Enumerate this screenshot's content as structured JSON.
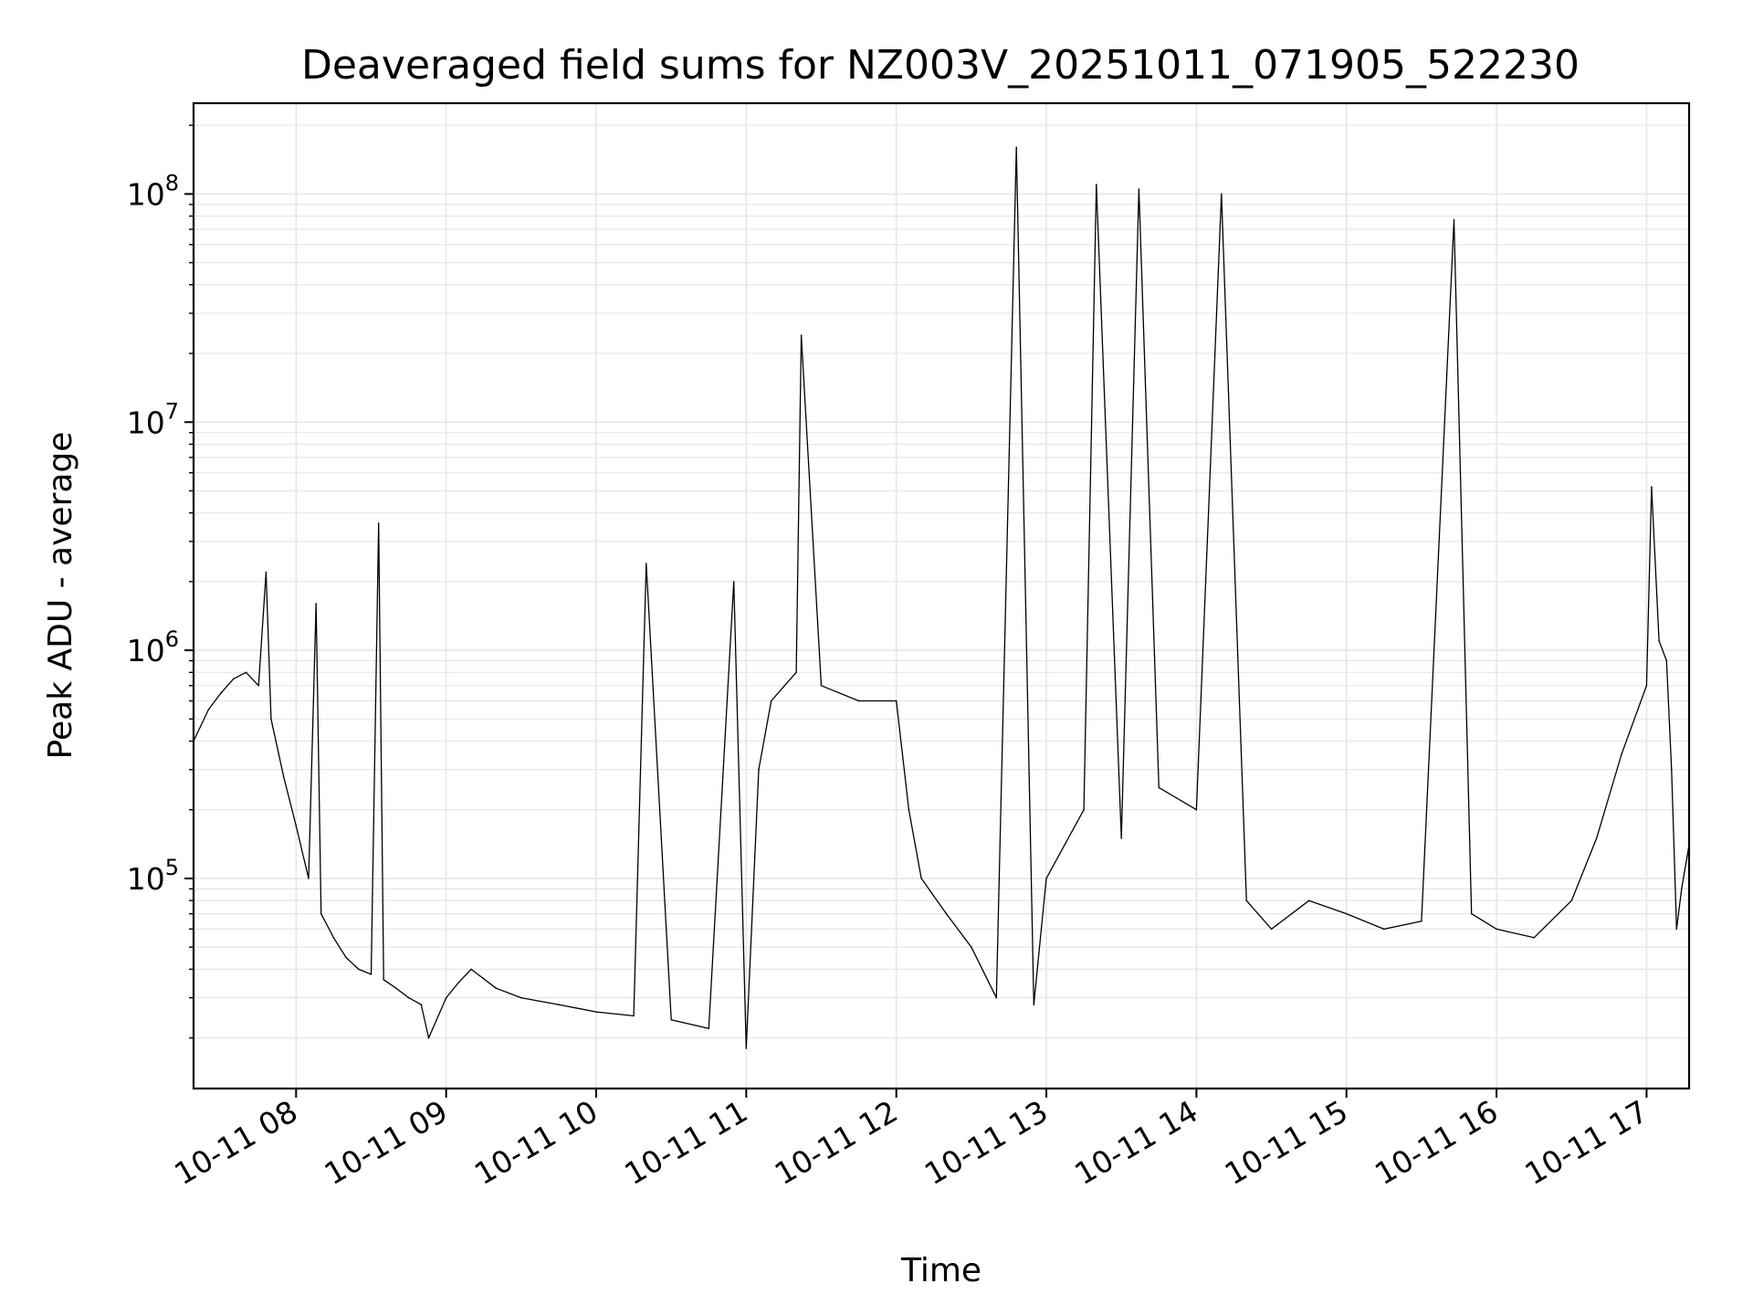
{
  "chart_data": {
    "type": "line",
    "title": "Deaveraged field sums for NZ003V_20251011_071905_522230",
    "xlabel": "Time",
    "ylabel": "Peak ADU - average",
    "y_scale": "log",
    "ylim": [
      12000,
      250000000
    ],
    "xlim": [
      "2025-10-11 07:19",
      "2025-10-11 17:17"
    ],
    "grid": true,
    "line_color": "#000000",
    "x_ticks": [
      {
        "value": "2025-10-11 08:00",
        "label": "10-11 08"
      },
      {
        "value": "2025-10-11 09:00",
        "label": "10-11 09"
      },
      {
        "value": "2025-10-11 10:00",
        "label": "10-11 10"
      },
      {
        "value": "2025-10-11 11:00",
        "label": "10-11 11"
      },
      {
        "value": "2025-10-11 12:00",
        "label": "10-11 12"
      },
      {
        "value": "2025-10-11 13:00",
        "label": "10-11 13"
      },
      {
        "value": "2025-10-11 14:00",
        "label": "10-11 14"
      },
      {
        "value": "2025-10-11 15:00",
        "label": "10-11 15"
      },
      {
        "value": "2025-10-11 16:00",
        "label": "10-11 16"
      },
      {
        "value": "2025-10-11 17:00",
        "label": "10-11 17"
      }
    ],
    "y_ticks": [
      {
        "value": 100000,
        "base": "10",
        "exp": "5"
      },
      {
        "value": 1000000,
        "base": "10",
        "exp": "6"
      },
      {
        "value": 10000000,
        "base": "10",
        "exp": "7"
      },
      {
        "value": 100000000,
        "base": "10",
        "exp": "8"
      }
    ],
    "series": [
      {
        "points": [
          [
            "2025-10-11 07:19",
            400000
          ],
          [
            "2025-10-11 07:25",
            550000
          ],
          [
            "2025-10-11 07:30",
            650000
          ],
          [
            "2025-10-11 07:35",
            750000
          ],
          [
            "2025-10-11 07:40",
            800000
          ],
          [
            "2025-10-11 07:45",
            700000
          ],
          [
            "2025-10-11 07:48",
            2200000
          ],
          [
            "2025-10-11 07:50",
            500000
          ],
          [
            "2025-10-11 07:55",
            280000
          ],
          [
            "2025-10-11 08:00",
            170000
          ],
          [
            "2025-10-11 08:05",
            100000
          ],
          [
            "2025-10-11 08:08",
            1600000
          ],
          [
            "2025-10-11 08:10",
            70000
          ],
          [
            "2025-10-11 08:15",
            55000
          ],
          [
            "2025-10-11 08:20",
            45000
          ],
          [
            "2025-10-11 08:25",
            40000
          ],
          [
            "2025-10-11 08:30",
            38000
          ],
          [
            "2025-10-11 08:33",
            3600000
          ],
          [
            "2025-10-11 08:35",
            36000
          ],
          [
            "2025-10-11 08:40",
            33000
          ],
          [
            "2025-10-11 08:45",
            30000
          ],
          [
            "2025-10-11 08:50",
            28000
          ],
          [
            "2025-10-11 08:53",
            20000
          ],
          [
            "2025-10-11 09:00",
            30000
          ],
          [
            "2025-10-11 09:05",
            35000
          ],
          [
            "2025-10-11 09:10",
            40000
          ],
          [
            "2025-10-11 09:20",
            33000
          ],
          [
            "2025-10-11 09:30",
            30000
          ],
          [
            "2025-10-11 09:45",
            28000
          ],
          [
            "2025-10-11 10:00",
            26000
          ],
          [
            "2025-10-11 10:15",
            25000
          ],
          [
            "2025-10-11 10:20",
            2400000
          ],
          [
            "2025-10-11 10:30",
            24000
          ],
          [
            "2025-10-11 10:45",
            22000
          ],
          [
            "2025-10-11 10:55",
            2000000
          ],
          [
            "2025-10-11 11:00",
            18000
          ],
          [
            "2025-10-11 11:05",
            300000
          ],
          [
            "2025-10-11 11:10",
            600000
          ],
          [
            "2025-10-11 11:20",
            800000
          ],
          [
            "2025-10-11 11:22",
            24000000
          ],
          [
            "2025-10-11 11:30",
            700000
          ],
          [
            "2025-10-11 11:45",
            600000
          ],
          [
            "2025-10-11 12:00",
            600000
          ],
          [
            "2025-10-11 12:05",
            200000
          ],
          [
            "2025-10-11 12:10",
            100000
          ],
          [
            "2025-10-11 12:20",
            70000
          ],
          [
            "2025-10-11 12:30",
            50000
          ],
          [
            "2025-10-11 12:40",
            30000
          ],
          [
            "2025-10-11 12:48",
            160000000
          ],
          [
            "2025-10-11 12:55",
            28000
          ],
          [
            "2025-10-11 13:00",
            100000
          ],
          [
            "2025-10-11 13:15",
            200000
          ],
          [
            "2025-10-11 13:20",
            110000000
          ],
          [
            "2025-10-11 13:30",
            150000
          ],
          [
            "2025-10-11 13:37",
            105000000
          ],
          [
            "2025-10-11 13:45",
            250000
          ],
          [
            "2025-10-11 14:00",
            200000
          ],
          [
            "2025-10-11 14:10",
            100000000
          ],
          [
            "2025-10-11 14:20",
            80000
          ],
          [
            "2025-10-11 14:30",
            60000
          ],
          [
            "2025-10-11 14:45",
            80000
          ],
          [
            "2025-10-11 15:00",
            70000
          ],
          [
            "2025-10-11 15:15",
            60000
          ],
          [
            "2025-10-11 15:30",
            65000
          ],
          [
            "2025-10-11 15:43",
            77000000
          ],
          [
            "2025-10-11 15:50",
            70000
          ],
          [
            "2025-10-11 16:00",
            60000
          ],
          [
            "2025-10-11 16:15",
            55000
          ],
          [
            "2025-10-11 16:30",
            80000
          ],
          [
            "2025-10-11 16:40",
            150000
          ],
          [
            "2025-10-11 16:50",
            350000
          ],
          [
            "2025-10-11 17:00",
            700000
          ],
          [
            "2025-10-11 17:02",
            5200000
          ],
          [
            "2025-10-11 17:05",
            1100000
          ],
          [
            "2025-10-11 17:08",
            900000
          ],
          [
            "2025-10-11 17:10",
            300000
          ],
          [
            "2025-10-11 17:12",
            60000
          ],
          [
            "2025-10-11 17:14",
            90000
          ],
          [
            "2025-10-11 17:17",
            140000
          ]
        ]
      }
    ]
  }
}
